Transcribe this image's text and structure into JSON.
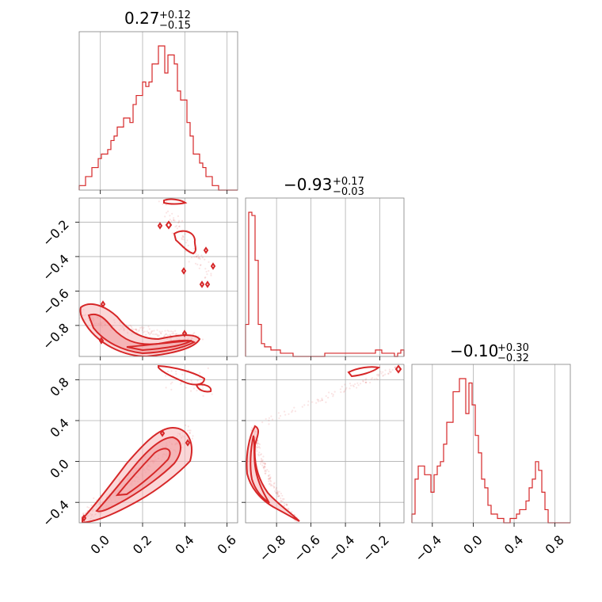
{
  "chart_data": [
    {
      "type": "histogram",
      "panel": "diag-1",
      "title": "0.27",
      "title_sup": "+0.12",
      "title_sub": "−0.15",
      "xlim": [
        -0.1,
        0.65
      ],
      "x_ticks": [
        0.0,
        0.2,
        0.4,
        0.6
      ],
      "bin_counts": [
        1,
        1,
        3,
        3,
        5,
        5,
        7,
        8,
        8,
        9,
        11,
        12,
        14,
        14,
        16,
        16,
        15,
        19,
        21,
        21,
        24,
        23,
        24,
        28,
        28,
        32,
        32,
        26,
        30,
        30,
        28,
        22,
        20,
        20,
        15,
        12,
        8,
        8,
        6,
        5,
        3,
        3,
        1,
        1,
        0,
        0,
        0,
        0,
        0,
        0
      ]
    },
    {
      "type": "histogram",
      "panel": "diag-2",
      "title": "−0.93",
      "title_sup": "+0.17",
      "title_sub": "−0.03",
      "xlim": [
        -0.98,
        -0.06
      ],
      "x_ticks": [
        -0.8,
        -0.6,
        -0.4,
        -0.2
      ],
      "x_tick_labels": [
        "−0.8",
        "−0.6",
        "−0.4",
        "−0.2"
      ],
      "bin_counts": [
        10,
        45,
        44,
        30,
        10,
        4,
        3,
        3,
        2,
        2,
        2,
        1,
        1,
        1,
        1,
        0,
        0,
        0,
        0,
        0,
        0,
        0,
        0,
        0,
        0,
        1,
        1,
        1,
        1,
        1,
        1,
        1,
        1,
        1,
        1,
        1,
        1,
        1,
        1,
        1,
        1,
        2,
        2,
        1,
        1,
        1,
        1,
        0,
        1,
        2
      ]
    },
    {
      "type": "histogram",
      "panel": "diag-3",
      "title": "−0.10",
      "title_sup": "+0.30",
      "title_sub": "−0.32",
      "xlim": [
        -0.6,
        0.95
      ],
      "x_ticks": [
        -0.4,
        0.0,
        0.4,
        0.8
      ],
      "x_tick_labels": [
        "−0.4",
        "0.0",
        "0.4",
        "0.8"
      ],
      "bin_counts": [
        2,
        10,
        13,
        13,
        11,
        11,
        7,
        11,
        13,
        14,
        18,
        23,
        23,
        30,
        30,
        33,
        33,
        25,
        32,
        27,
        20,
        16,
        10,
        8,
        4,
        2,
        2,
        1,
        1,
        0,
        0,
        1,
        1,
        2,
        3,
        3,
        5,
        8,
        10,
        14,
        12,
        7,
        3,
        0,
        0,
        0,
        0,
        0,
        0,
        0
      ]
    },
    {
      "type": "scatter",
      "panel": "corner-2-1",
      "xlim": [
        -0.1,
        0.65
      ],
      "ylim": [
        -0.98,
        -0.06
      ],
      "x_ticks": [
        0.0,
        0.2,
        0.4,
        0.6
      ],
      "y_ticks": [
        -0.8,
        -0.6,
        -0.4,
        -0.2
      ],
      "y_tick_labels": [
        "−0.8",
        "−0.6",
        "−0.4",
        "−0.2"
      ]
    },
    {
      "type": "scatter",
      "panel": "corner-3-1",
      "xlim": [
        -0.1,
        0.65
      ],
      "ylim": [
        -0.6,
        0.95
      ],
      "x_ticks": [
        0.0,
        0.2,
        0.4,
        0.6
      ],
      "x_tick_labels": [
        "0.0",
        "0.2",
        "0.4",
        "0.6"
      ],
      "y_ticks": [
        -0.4,
        0.0,
        0.4,
        0.8
      ],
      "y_tick_labels": [
        "−0.4",
        "0.0",
        "0.4",
        "0.8"
      ]
    },
    {
      "type": "scatter",
      "panel": "corner-3-2",
      "xlim": [
        -0.98,
        -0.06
      ],
      "ylim": [
        -0.6,
        0.95
      ],
      "x_ticks": [
        -0.8,
        -0.6,
        -0.4,
        -0.2
      ],
      "x_tick_labels": [
        "−0.8",
        "−0.6",
        "−0.4",
        "−0.2"
      ],
      "y_ticks": [
        -0.4,
        0.0,
        0.4,
        0.8
      ]
    }
  ],
  "colors": {
    "series": "#d62728",
    "frame": "#808080",
    "grid": "#b0b0b0"
  }
}
